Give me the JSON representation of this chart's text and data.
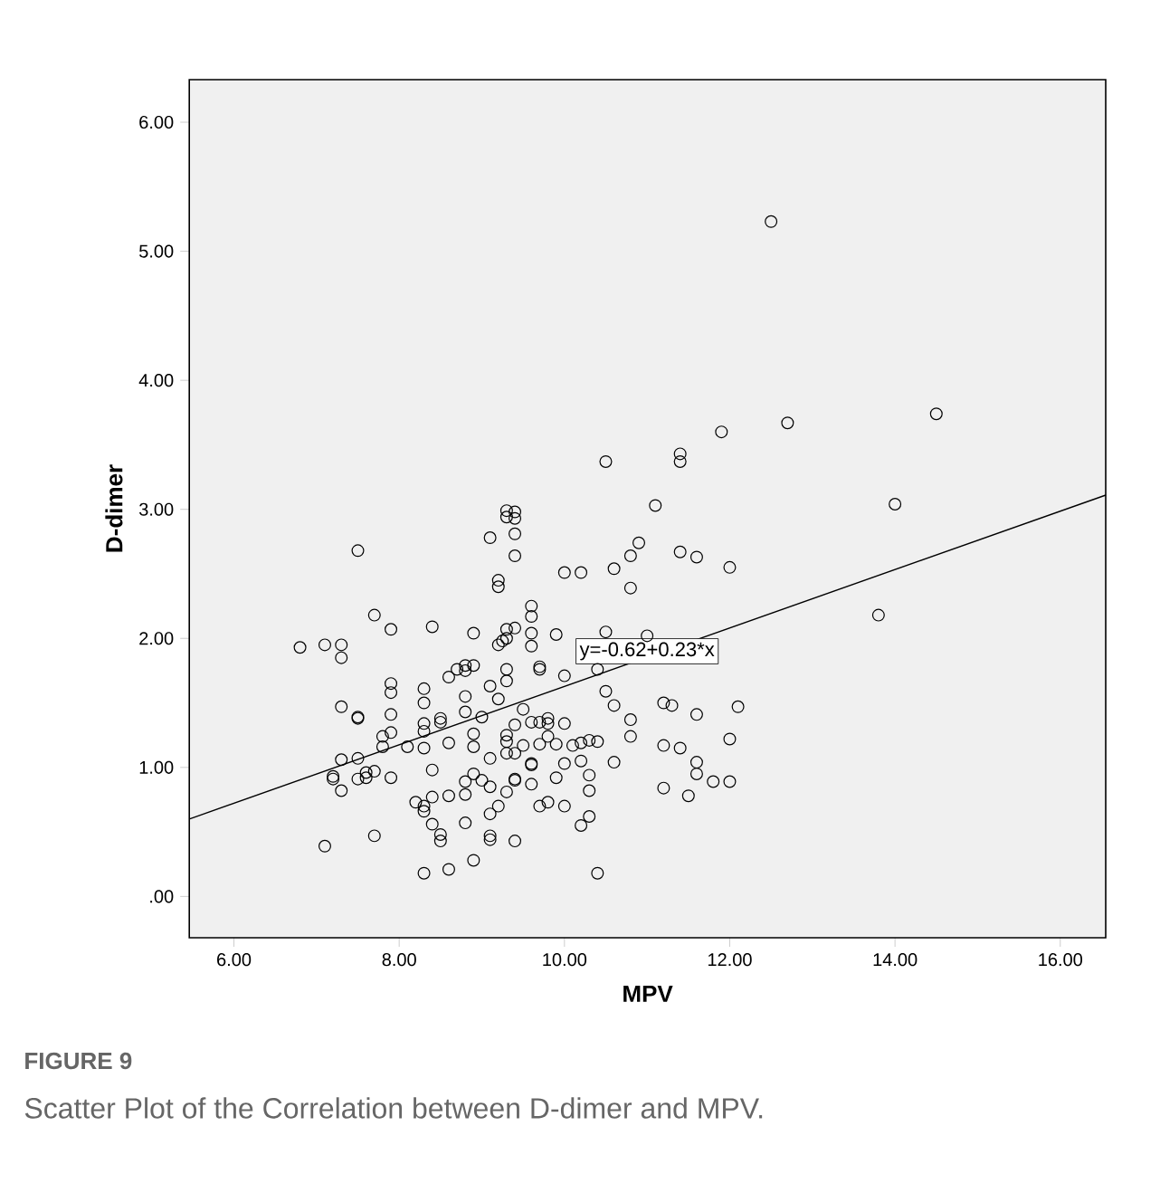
{
  "chart_data": {
    "type": "scatter",
    "xlabel": "MPV",
    "ylabel": "D-dimer",
    "marker": "circle",
    "xlim": [
      5.46,
      16.55
    ],
    "ylim": [
      -0.32,
      6.33
    ],
    "xticks": [
      {
        "value": 6,
        "label": "6.00"
      },
      {
        "value": 8,
        "label": "8.00"
      },
      {
        "value": 10,
        "label": "10.00"
      },
      {
        "value": 12,
        "label": "12.00"
      },
      {
        "value": 14,
        "label": "14.00"
      },
      {
        "value": 16,
        "label": "16.00"
      }
    ],
    "yticks": [
      {
        "value": 0,
        "label": ".00"
      },
      {
        "value": 1,
        "label": "1.00"
      },
      {
        "value": 2,
        "label": "2.00"
      },
      {
        "value": 3,
        "label": "3.00"
      },
      {
        "value": 4,
        "label": "4.00"
      },
      {
        "value": 5,
        "label": "5.00"
      },
      {
        "value": 6,
        "label": "6.00"
      }
    ],
    "annotations": [
      {
        "text": "y=-0.62+0.23*x",
        "x": 11.0,
        "y": 1.9
      },
      "FIGURE 9",
      "Scatter Plot of the Correlation between D-dimer and MPV."
    ],
    "series": [
      {
        "color": "#000000",
        "x": [
          12.5,
          14.5,
          12.7,
          11.9,
          11.4,
          11.4,
          10.5,
          11.1,
          14.0,
          9.3,
          9.4,
          9.3,
          9.4,
          9.4,
          9.1,
          7.5,
          10.9,
          10.8,
          11.4,
          11.6,
          9.4,
          12.0,
          10.6,
          10.0,
          10.2,
          9.2,
          9.2,
          10.8,
          9.6,
          9.6,
          7.7,
          13.8,
          7.9,
          8.4,
          8.9,
          9.3,
          9.4,
          9.6,
          9.9,
          10.5,
          11.0,
          9.3,
          9.2,
          9.25,
          9.6,
          6.8,
          7.1,
          7.3,
          7.3,
          8.8,
          8.9,
          8.7,
          8.8,
          8.6,
          9.3,
          9.3,
          9.7,
          9.7,
          10.0,
          10.4,
          7.9,
          7.9,
          8.3,
          8.3,
          9.1,
          9.2,
          8.8,
          9.5,
          10.5,
          10.6,
          11.2,
          11.3,
          11.6,
          12.1,
          7.3,
          7.5,
          7.5,
          7.9,
          8.8,
          9.0,
          8.5,
          8.5,
          8.3,
          8.3,
          7.9,
          7.8,
          7.8,
          8.1,
          8.3,
          8.6,
          8.9,
          8.9,
          9.4,
          9.3,
          9.3,
          9.3,
          9.4,
          9.5,
          9.6,
          9.7,
          9.8,
          9.8,
          10.0,
          9.8,
          9.7,
          9.9,
          10.1,
          10.2,
          10.3,
          10.4,
          10.8,
          10.8,
          11.2,
          11.4,
          12.0,
          7.3,
          7.5,
          7.2,
          7.2,
          7.3,
          7.5,
          7.6,
          7.6,
          7.7,
          7.9,
          8.4,
          9.1,
          9.6,
          9.6,
          10.0,
          10.2,
          10.6,
          11.6,
          11.6,
          11.8,
          12.0,
          11.2,
          11.5,
          8.8,
          8.9,
          9.0,
          9.1,
          9.4,
          9.4,
          9.3,
          9.6,
          9.9,
          10.3,
          10.3,
          8.2,
          8.3,
          8.3,
          8.4,
          8.6,
          8.8,
          9.2,
          9.1,
          9.7,
          9.8,
          10.0,
          10.3,
          10.2,
          8.4,
          8.8,
          8.5,
          8.5,
          9.1,
          9.1,
          9.4,
          7.7,
          7.1,
          8.9,
          8.3,
          8.6,
          10.4
        ],
        "values": [
          5.23,
          3.74,
          3.67,
          3.6,
          3.43,
          3.37,
          3.37,
          3.03,
          3.04,
          2.99,
          2.98,
          2.94,
          2.93,
          2.81,
          2.78,
          2.68,
          2.74,
          2.64,
          2.67,
          2.63,
          2.64,
          2.55,
          2.54,
          2.51,
          2.51,
          2.45,
          2.4,
          2.39,
          2.25,
          2.17,
          2.18,
          2.18,
          2.07,
          2.09,
          2.04,
          2.07,
          2.08,
          2.04,
          2.03,
          2.05,
          2.02,
          2.0,
          1.95,
          1.98,
          1.94,
          1.93,
          1.95,
          1.95,
          1.85,
          1.79,
          1.79,
          1.76,
          1.75,
          1.7,
          1.76,
          1.67,
          1.78,
          1.76,
          1.71,
          1.76,
          1.65,
          1.58,
          1.61,
          1.5,
          1.63,
          1.53,
          1.55,
          1.45,
          1.59,
          1.48,
          1.5,
          1.48,
          1.41,
          1.47,
          1.47,
          1.39,
          1.38,
          1.41,
          1.43,
          1.39,
          1.38,
          1.35,
          1.34,
          1.28,
          1.27,
          1.24,
          1.16,
          1.16,
          1.15,
          1.19,
          1.26,
          1.16,
          1.33,
          1.25,
          1.2,
          1.11,
          1.11,
          1.17,
          1.35,
          1.35,
          1.38,
          1.34,
          1.34,
          1.24,
          1.18,
          1.18,
          1.17,
          1.19,
          1.21,
          1.2,
          1.37,
          1.24,
          1.17,
          1.15,
          1.22,
          1.06,
          1.07,
          0.93,
          0.91,
          0.82,
          0.91,
          0.96,
          0.92,
          0.97,
          0.92,
          0.98,
          1.07,
          1.03,
          1.02,
          1.03,
          1.05,
          1.04,
          1.04,
          0.95,
          0.89,
          0.89,
          0.84,
          0.78,
          0.89,
          0.95,
          0.9,
          0.85,
          0.91,
          0.9,
          0.81,
          0.87,
          0.92,
          0.94,
          0.82,
          0.73,
          0.7,
          0.66,
          0.77,
          0.78,
          0.79,
          0.7,
          0.64,
          0.7,
          0.73,
          0.7,
          0.62,
          0.55,
          0.56,
          0.57,
          0.48,
          0.43,
          0.47,
          0.44,
          0.43,
          0.47,
          0.39,
          0.28,
          0.18,
          0.21,
          0.18
        ]
      },
      {
        "type": "line",
        "color": "#000000",
        "marker": "none",
        "x": [
          5.46,
          16.55
        ],
        "values": [
          0.6,
          3.11
        ]
      }
    ]
  }
}
